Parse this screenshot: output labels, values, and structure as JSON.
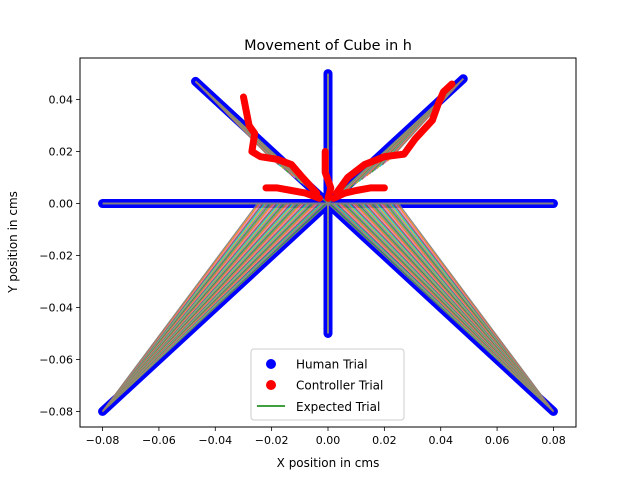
{
  "chart_data": {
    "type": "scatter",
    "title": "Movement of Cube in h",
    "xlabel": "X position in cms",
    "ylabel": "Y position in cms",
    "xlim": [
      -0.088,
      0.088
    ],
    "ylim": [
      -0.086,
      0.056
    ],
    "xticks": [
      -0.08,
      -0.06,
      -0.04,
      -0.02,
      0.0,
      0.02,
      0.04,
      0.06,
      0.08
    ],
    "yticks": [
      -0.08,
      -0.06,
      -0.04,
      -0.02,
      0.0,
      0.02,
      0.04
    ],
    "tick_labels_x": [
      "−0.08",
      "−0.06",
      "−0.04",
      "−0.02",
      "0.00",
      "0.02",
      "0.04",
      "0.06",
      "0.08"
    ],
    "tick_labels_y": [
      "−0.08",
      "−0.06",
      "−0.04",
      "−0.02",
      "0.00",
      "0.02",
      "0.04"
    ],
    "grid": false,
    "legend_position": "lower-center",
    "legend": [
      {
        "label": "Human Trial",
        "marker": "dot",
        "color": "#0000ff"
      },
      {
        "label": "Controller Trial",
        "marker": "dot",
        "color": "#ff0000"
      },
      {
        "label": "Expected Trial",
        "marker": "line",
        "color": "#008000"
      }
    ],
    "series": [
      {
        "name": "Human Trial",
        "color": "#0000ff",
        "segments": [
          [
            [
              -0.08,
              0.0
            ],
            [
              0.08,
              0.0
            ]
          ],
          [
            [
              0.0,
              -0.05
            ],
            [
              0.0,
              0.05
            ]
          ],
          [
            [
              -0.08,
              -0.08
            ],
            [
              0.0,
              0.0
            ]
          ],
          [
            [
              0.08,
              -0.08
            ],
            [
              0.0,
              0.0
            ]
          ],
          [
            [
              -0.047,
              0.047
            ],
            [
              0.0,
              0.0
            ]
          ],
          [
            [
              0.048,
              0.048
            ],
            [
              0.0,
              0.0
            ]
          ]
        ]
      },
      {
        "name": "Controller Trial",
        "color": "#ff0000",
        "paths": [
          [
            [
              -0.03,
              0.041
            ],
            [
              -0.028,
              0.03
            ],
            [
              -0.026,
              0.027
            ],
            [
              -0.027,
              0.02
            ],
            [
              -0.024,
              0.018
            ],
            [
              -0.018,
              0.017
            ],
            [
              -0.013,
              0.015
            ],
            [
              -0.009,
              0.01
            ],
            [
              -0.004,
              0.004
            ]
          ],
          [
            [
              0.044,
              0.046
            ],
            [
              0.041,
              0.043
            ],
            [
              0.039,
              0.038
            ],
            [
              0.037,
              0.032
            ],
            [
              0.031,
              0.025
            ],
            [
              0.027,
              0.019
            ],
            [
              0.02,
              0.018
            ],
            [
              0.013,
              0.015
            ],
            [
              0.007,
              0.01
            ],
            [
              0.003,
              0.004
            ]
          ],
          [
            [
              -0.022,
              0.006
            ],
            [
              -0.018,
              0.006
            ],
            [
              -0.013,
              0.005
            ],
            [
              -0.008,
              0.004
            ],
            [
              -0.003,
              0.002
            ]
          ],
          [
            [
              0.02,
              0.006
            ],
            [
              0.015,
              0.006
            ],
            [
              0.01,
              0.005
            ],
            [
              0.006,
              0.004
            ],
            [
              0.002,
              0.002
            ]
          ],
          [
            [
              -0.001,
              0.02
            ],
            [
              -0.001,
              0.012
            ],
            [
              0.001,
              0.006
            ],
            [
              0.0,
              0.002
            ]
          ]
        ]
      },
      {
        "name": "Expected Trial",
        "color": "#008000"
      }
    ]
  }
}
